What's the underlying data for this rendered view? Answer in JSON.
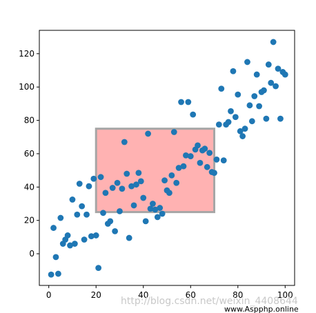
{
  "chart_data": {
    "type": "scatter",
    "xlim": [
      -4,
      104
    ],
    "ylim": [
      -19,
      134
    ],
    "xticks": [
      0,
      20,
      40,
      60,
      80,
      100
    ],
    "yticks": [
      0,
      20,
      40,
      60,
      80,
      100,
      120
    ],
    "xtick_labels": [
      "0",
      "20",
      "40",
      "60",
      "80",
      "100"
    ],
    "ytick_labels": [
      "0",
      "20",
      "40",
      "60",
      "80",
      "100",
      "120"
    ],
    "title": "",
    "xlabel": "",
    "ylabel": "",
    "grid": false,
    "marker_color": "#1f77b4",
    "points": [
      [
        1,
        -12.5
      ],
      [
        2,
        15.5
      ],
      [
        3,
        -2
      ],
      [
        4,
        -12
      ],
      [
        5,
        21.5
      ],
      [
        6,
        6
      ],
      [
        7,
        8.5
      ],
      [
        8,
        11
      ],
      [
        9,
        5
      ],
      [
        10,
        32.5
      ],
      [
        11,
        6
      ],
      [
        12,
        23.5
      ],
      [
        13,
        42
      ],
      [
        14,
        28.5
      ],
      [
        15,
        8.5
      ],
      [
        16,
        23.5
      ],
      [
        17,
        40.5
      ],
      [
        18,
        10.5
      ],
      [
        19,
        45
      ],
      [
        20,
        11
      ],
      [
        21,
        -8.5
      ],
      [
        22,
        46
      ],
      [
        23,
        24.5
      ],
      [
        24,
        36.5
      ],
      [
        25,
        18
      ],
      [
        26,
        19.5
      ],
      [
        27,
        39.5
      ],
      [
        28,
        13.5
      ],
      [
        29,
        42.5
      ],
      [
        30,
        25.5
      ],
      [
        31,
        39
      ],
      [
        32,
        67
      ],
      [
        33,
        48
      ],
      [
        34,
        9.5
      ],
      [
        35,
        40.5
      ],
      [
        36,
        29
      ],
      [
        37,
        41.5
      ],
      [
        38,
        48.5
      ],
      [
        39,
        43.5
      ],
      [
        40,
        33.5
      ],
      [
        41,
        19.5
      ],
      [
        42,
        72
      ],
      [
        43,
        27
      ],
      [
        44,
        30
      ],
      [
        45,
        26.5
      ],
      [
        46,
        22
      ],
      [
        47,
        27.5
      ],
      [
        48,
        24
      ],
      [
        49,
        44
      ],
      [
        50,
        38
      ],
      [
        51,
        36.5
      ],
      [
        52,
        47
      ],
      [
        53,
        73
      ],
      [
        54,
        42.5
      ],
      [
        55,
        51.5
      ],
      [
        56,
        91
      ],
      [
        57,
        52.5
      ],
      [
        58,
        59
      ],
      [
        59,
        91
      ],
      [
        60,
        58.5
      ],
      [
        61,
        83.5
      ],
      [
        62,
        62.5
      ],
      [
        63,
        65
      ],
      [
        64,
        54.5
      ],
      [
        65,
        62
      ],
      [
        66,
        63
      ],
      [
        67,
        52
      ],
      [
        68,
        60.5
      ],
      [
        69,
        49
      ],
      [
        70,
        48.5
      ],
      [
        71,
        56.5
      ],
      [
        72,
        77.5
      ],
      [
        73,
        99
      ],
      [
        74,
        56
      ],
      [
        75,
        77.5
      ],
      [
        76,
        79
      ],
      [
        77,
        85.5
      ],
      [
        78,
        109.5
      ],
      [
        79,
        82
      ],
      [
        80,
        95.5
      ],
      [
        81,
        73.5
      ],
      [
        82,
        70.5
      ],
      [
        83,
        75
      ],
      [
        84,
        115
      ],
      [
        85,
        89
      ],
      [
        86,
        79.5
      ],
      [
        87,
        94.5
      ],
      [
        88,
        107.5
      ],
      [
        89,
        88.5
      ],
      [
        90,
        97
      ],
      [
        91,
        98
      ],
      [
        92,
        81
      ],
      [
        93,
        113.5
      ],
      [
        94,
        102.5
      ],
      [
        95,
        127
      ],
      [
        96,
        100.5
      ],
      [
        97,
        111
      ],
      [
        98,
        81
      ],
      [
        99,
        109
      ],
      [
        100,
        107.5
      ]
    ],
    "rectangle": {
      "x": 20,
      "y": 25,
      "width": 50,
      "height": 50,
      "facecolor": "#ffb2b2",
      "edgecolor": "#a6a6a6"
    }
  },
  "watermark": {
    "main": "http://blog.csdn.net/weixin_4408644",
    "site": "www.Aspphp.online"
  }
}
